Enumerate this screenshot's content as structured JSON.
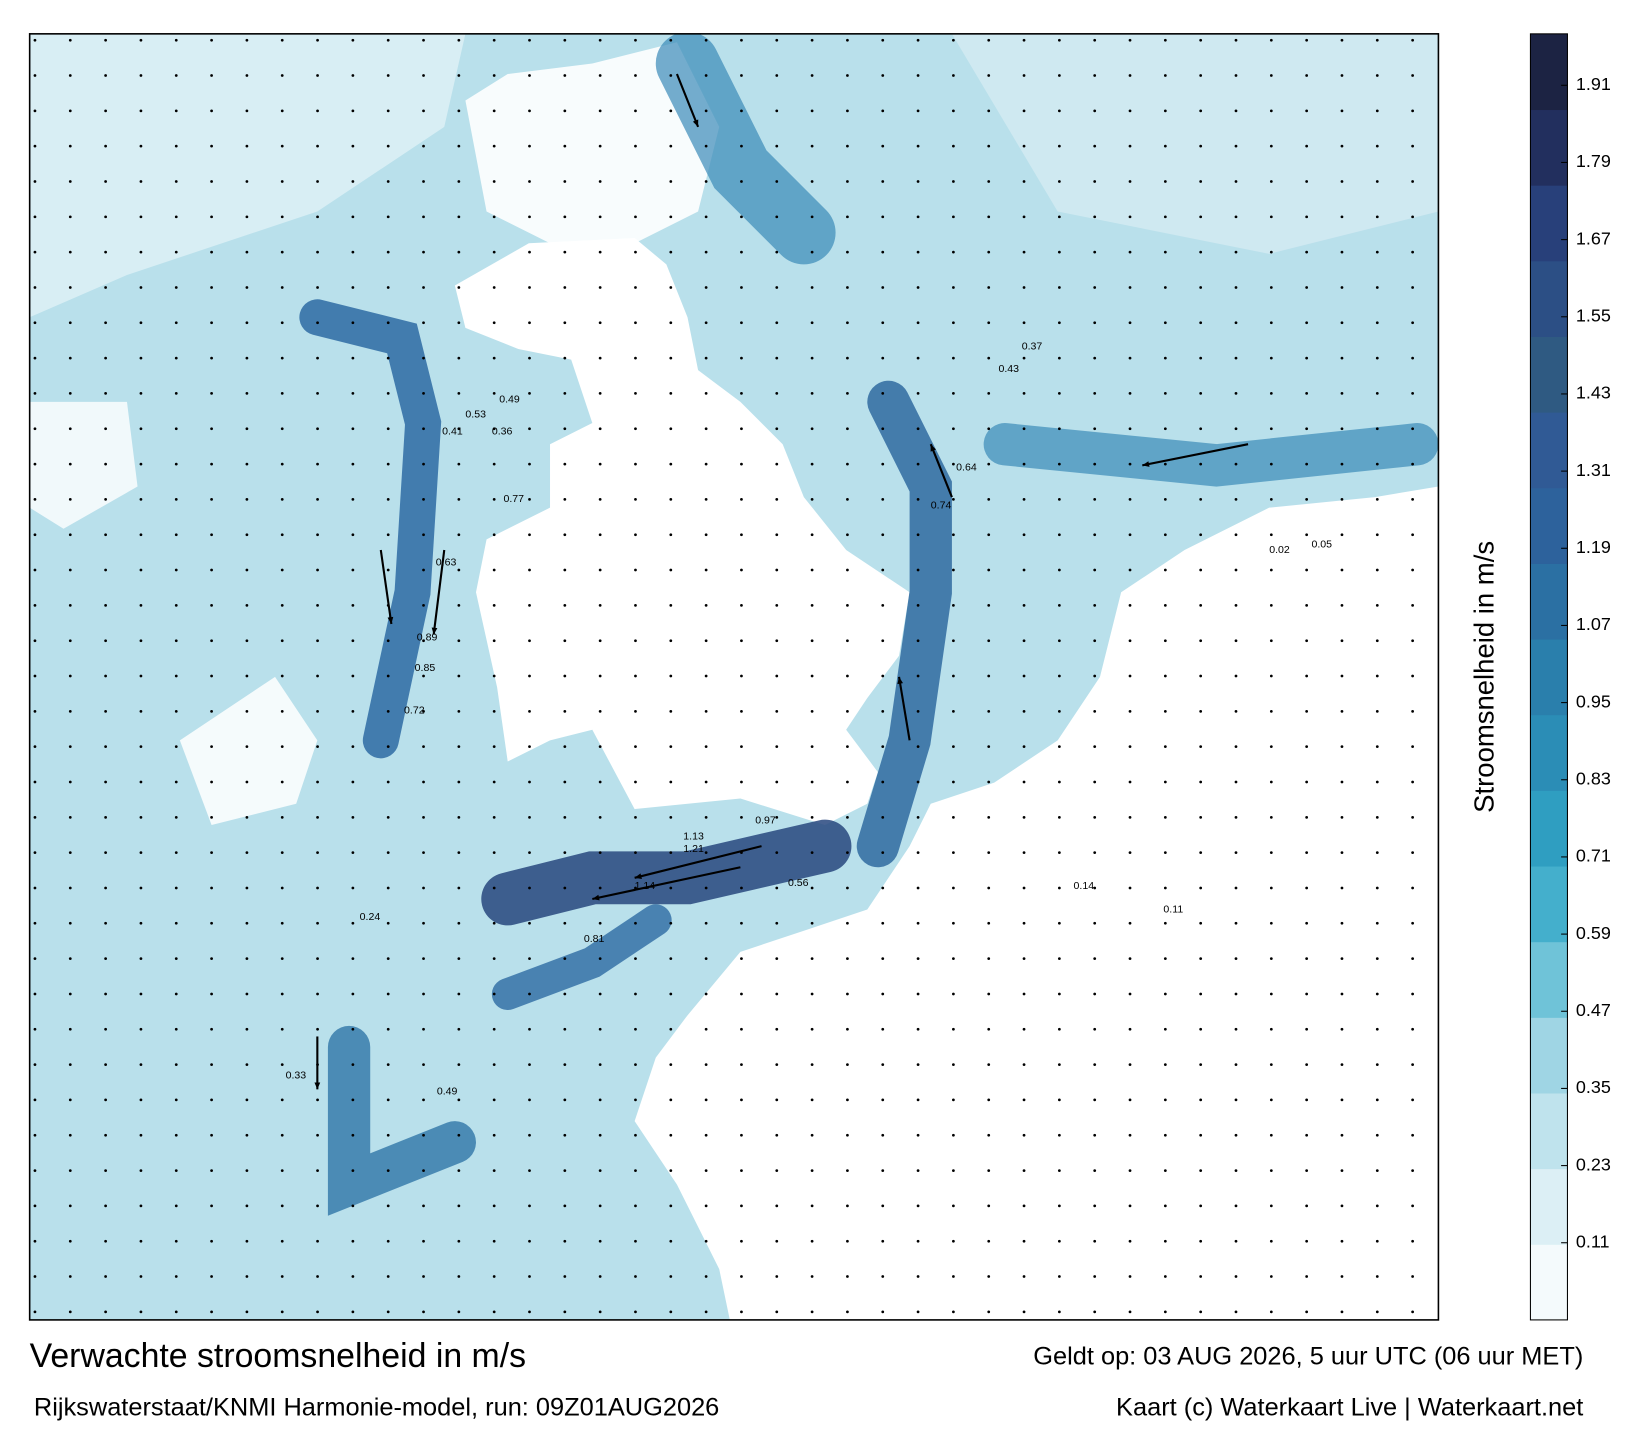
{
  "title": "Verwachte stroomsnelheid in m/s",
  "subtitle": "Rijkswaterstaat/KNMI Harmonie-model, run: 09Z01AUG2026",
  "valid_time": "Geldt op: 03 AUG 2026, 5 uur UTC (06 uur MET)",
  "credit": "Kaart (c) Waterkaart Live | Waterkaart.net",
  "colorbar": {
    "label": "Stroomsnelheid in m/s",
    "lim": [
      -0.01,
      1.99
    ],
    "ticks": [
      0.11,
      0.23,
      0.35,
      0.47,
      0.59,
      0.71,
      0.83,
      0.95,
      1.07,
      1.19,
      1.31,
      1.43,
      1.55,
      1.67,
      1.79,
      1.91
    ],
    "colors": [
      "#f4fafc",
      "#dceff5",
      "#bfe3ed",
      "#9fd5e4",
      "#6fc3d8",
      "#44afcc",
      "#2f9ec1",
      "#2b8db6",
      "#2a7fac",
      "#2b70a3",
      "#2d629c",
      "#305a95",
      "#2f5a82",
      "#2c4f85",
      "#28407a",
      "#222f5e",
      "#1c2343"
    ]
  },
  "map_labels": [
    "0.36",
    "0.53",
    "0.49",
    "0.41",
    "0.85",
    "0.89",
    "0.72",
    "0.63",
    "0.77",
    "0.74",
    "0.64",
    "0.37",
    "0.43",
    "1.21",
    "1.13",
    "1.14",
    "0.97",
    "0.81",
    "0.56",
    "0.49",
    "0.33",
    "0.24",
    "0.05",
    "0.02",
    "0.14",
    "0.11"
  ]
}
